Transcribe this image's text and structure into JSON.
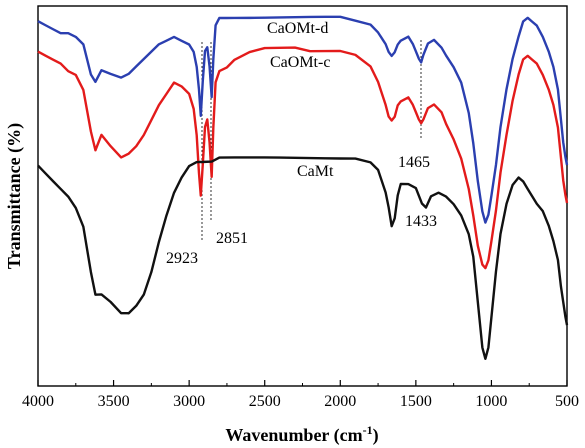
{
  "chart_data": {
    "type": "line",
    "title": "",
    "xlabel": "Wavenumber (cm",
    "xlabel_sup": "-1",
    "xlabel_close": ")",
    "ylabel": "Transmittance (%)",
    "xlim": [
      4000,
      500
    ],
    "x_reversed": true,
    "xticks": [
      4000,
      3500,
      3000,
      2500,
      2000,
      1500,
      1000,
      500
    ],
    "xtick_labels": [
      "4000",
      "3500",
      "3000",
      "2500",
      "2000",
      "1500",
      "1000",
      "500"
    ],
    "ylim": [
      0,
      100
    ],
    "y_ticks_labeled": false,
    "grid": false,
    "legend": "none",
    "series": [
      {
        "name": "CaOMt-d",
        "color": "#2b3fb0",
        "x": [
          4000,
          3950,
          3900,
          3850,
          3800,
          3750,
          3700,
          3650,
          3620,
          3580,
          3520,
          3450,
          3400,
          3350,
          3300,
          3250,
          3200,
          3150,
          3100,
          3050,
          3000,
          2970,
          2950,
          2935,
          2923,
          2910,
          2895,
          2880,
          2865,
          2851,
          2840,
          2825,
          2800,
          2750,
          2700,
          2600,
          2500,
          2400,
          2300,
          2200,
          2100,
          2000,
          1900,
          1800,
          1750,
          1700,
          1680,
          1660,
          1640,
          1620,
          1600,
          1550,
          1520,
          1500,
          1480,
          1465,
          1450,
          1420,
          1380,
          1330,
          1300,
          1250,
          1200,
          1150,
          1120,
          1090,
          1060,
          1040,
          1020,
          1000,
          970,
          940,
          900,
          860,
          820,
          790,
          760,
          730,
          700,
          660,
          620,
          590,
          560,
          540,
          525,
          510,
          500
        ],
        "y": [
          96,
          95,
          94,
          93,
          93,
          92,
          90,
          82,
          80,
          83,
          82,
          81,
          82,
          84,
          86,
          88,
          90,
          91,
          92,
          91,
          90,
          88,
          84,
          78,
          71,
          80,
          88,
          89,
          84,
          76,
          86,
          95,
          97,
          97,
          97,
          97,
          97,
          97,
          97,
          97,
          97,
          97,
          96,
          95,
          93,
          90,
          88,
          87,
          88,
          90,
          91,
          92,
          90,
          88,
          86,
          85,
          87,
          90,
          91,
          89,
          87,
          84,
          80,
          72,
          64,
          54,
          46,
          43,
          45,
          50,
          58,
          68,
          78,
          86,
          92,
          96,
          97,
          96,
          95,
          92,
          88,
          84,
          78,
          70,
          64,
          60,
          58
        ]
      },
      {
        "name": "CaOMt-c",
        "color": "#e31b1b",
        "x": [
          4000,
          3950,
          3900,
          3850,
          3800,
          3750,
          3700,
          3650,
          3620,
          3580,
          3520,
          3450,
          3400,
          3350,
          3300,
          3250,
          3200,
          3150,
          3100,
          3050,
          3000,
          2970,
          2950,
          2935,
          2923,
          2910,
          2895,
          2880,
          2865,
          2851,
          2840,
          2825,
          2800,
          2750,
          2700,
          2600,
          2500,
          2400,
          2300,
          2200,
          2100,
          2000,
          1900,
          1800,
          1750,
          1700,
          1680,
          1660,
          1640,
          1620,
          1600,
          1550,
          1520,
          1500,
          1480,
          1465,
          1450,
          1420,
          1380,
          1330,
          1300,
          1250,
          1200,
          1150,
          1120,
          1090,
          1060,
          1040,
          1020,
          1000,
          970,
          940,
          900,
          860,
          820,
          790,
          760,
          730,
          700,
          660,
          620,
          590,
          560,
          540,
          525,
          510,
          500
        ],
        "y": [
          88,
          87,
          86,
          85,
          83,
          82,
          78,
          67,
          62,
          66,
          63,
          60,
          61,
          63,
          66,
          70,
          74,
          77,
          80,
          79,
          77,
          73,
          66,
          56,
          50,
          58,
          68,
          70,
          64,
          55,
          68,
          80,
          83,
          84,
          86,
          88,
          89,
          89,
          89,
          88,
          88,
          88,
          87,
          84,
          80,
          74,
          71,
          70,
          71,
          74,
          75,
          76,
          74,
          72,
          70,
          69,
          70,
          73,
          74,
          72,
          69,
          65,
          60,
          52,
          45,
          37,
          32,
          31,
          33,
          38,
          46,
          56,
          66,
          75,
          82,
          86,
          87,
          86,
          85,
          82,
          78,
          74,
          68,
          60,
          54,
          50,
          48
        ]
      },
      {
        "name": "CaMt",
        "color": "#111111",
        "x": [
          4000,
          3950,
          3900,
          3850,
          3800,
          3750,
          3700,
          3650,
          3620,
          3580,
          3520,
          3450,
          3400,
          3350,
          3300,
          3250,
          3200,
          3150,
          3100,
          3050,
          3000,
          2950,
          2900,
          2850,
          2800,
          2700,
          2600,
          2500,
          2400,
          2300,
          2200,
          2100,
          2000,
          1900,
          1800,
          1750,
          1700,
          1680,
          1660,
          1640,
          1620,
          1600,
          1550,
          1500,
          1460,
          1433,
          1400,
          1350,
          1300,
          1250,
          1200,
          1150,
          1120,
          1090,
          1060,
          1040,
          1020,
          1000,
          970,
          940,
          900,
          860,
          820,
          790,
          760,
          730,
          700,
          660,
          620,
          590,
          560,
          540,
          525,
          510,
          500
        ],
        "y": [
          58,
          56,
          54,
          52,
          50,
          47,
          42,
          30,
          24,
          24,
          22,
          19,
          19,
          21,
          24,
          30,
          38,
          45,
          51,
          55,
          58,
          59,
          59,
          59,
          60,
          60,
          60,
          60,
          60,
          60,
          60,
          60,
          60,
          60,
          59,
          57,
          51,
          47,
          42,
          44,
          50,
          53,
          53,
          52,
          48,
          47,
          50,
          51,
          50,
          48,
          45,
          40,
          34,
          22,
          10,
          7,
          10,
          18,
          30,
          40,
          48,
          53,
          55,
          54,
          52,
          50,
          48,
          46,
          42,
          38,
          33,
          26,
          22,
          18,
          16
        ]
      }
    ],
    "annotations": {
      "series_labels": [
        "CaOMt-d",
        "CaOMt-c",
        "CaMt"
      ],
      "peaks": [
        "2923",
        "2851",
        "1465",
        "1433"
      ]
    }
  }
}
